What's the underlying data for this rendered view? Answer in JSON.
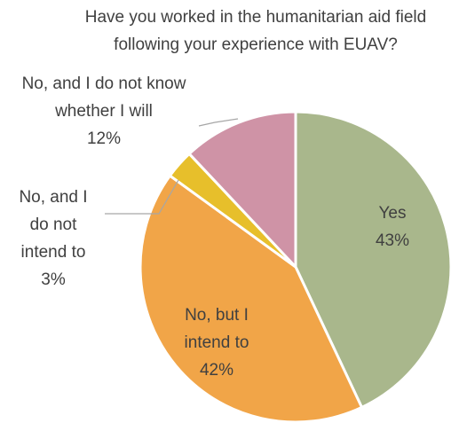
{
  "chart_data": {
    "type": "pie",
    "title_lines": [
      "Have you worked in the humanitarian aid field",
      "following your experience with EUAV?"
    ],
    "slices": [
      {
        "label_lines": [
          "Yes",
          "43%"
        ],
        "value": 43,
        "color": "#a9b78c"
      },
      {
        "label_lines": [
          "No, but I",
          "intend to",
          "42%"
        ],
        "value": 42,
        "color": "#f1a548"
      },
      {
        "label_lines": [
          "No, and I",
          "do not",
          "intend to",
          "3%"
        ],
        "value": 3,
        "color": "#e7bf2b"
      },
      {
        "label_lines": [
          "No, and I do not know",
          "whether I will",
          "12%"
        ],
        "value": 12,
        "color": "#cf93a6"
      }
    ],
    "start_angle_deg": 0,
    "direction": "clockwise",
    "legend": "none"
  }
}
